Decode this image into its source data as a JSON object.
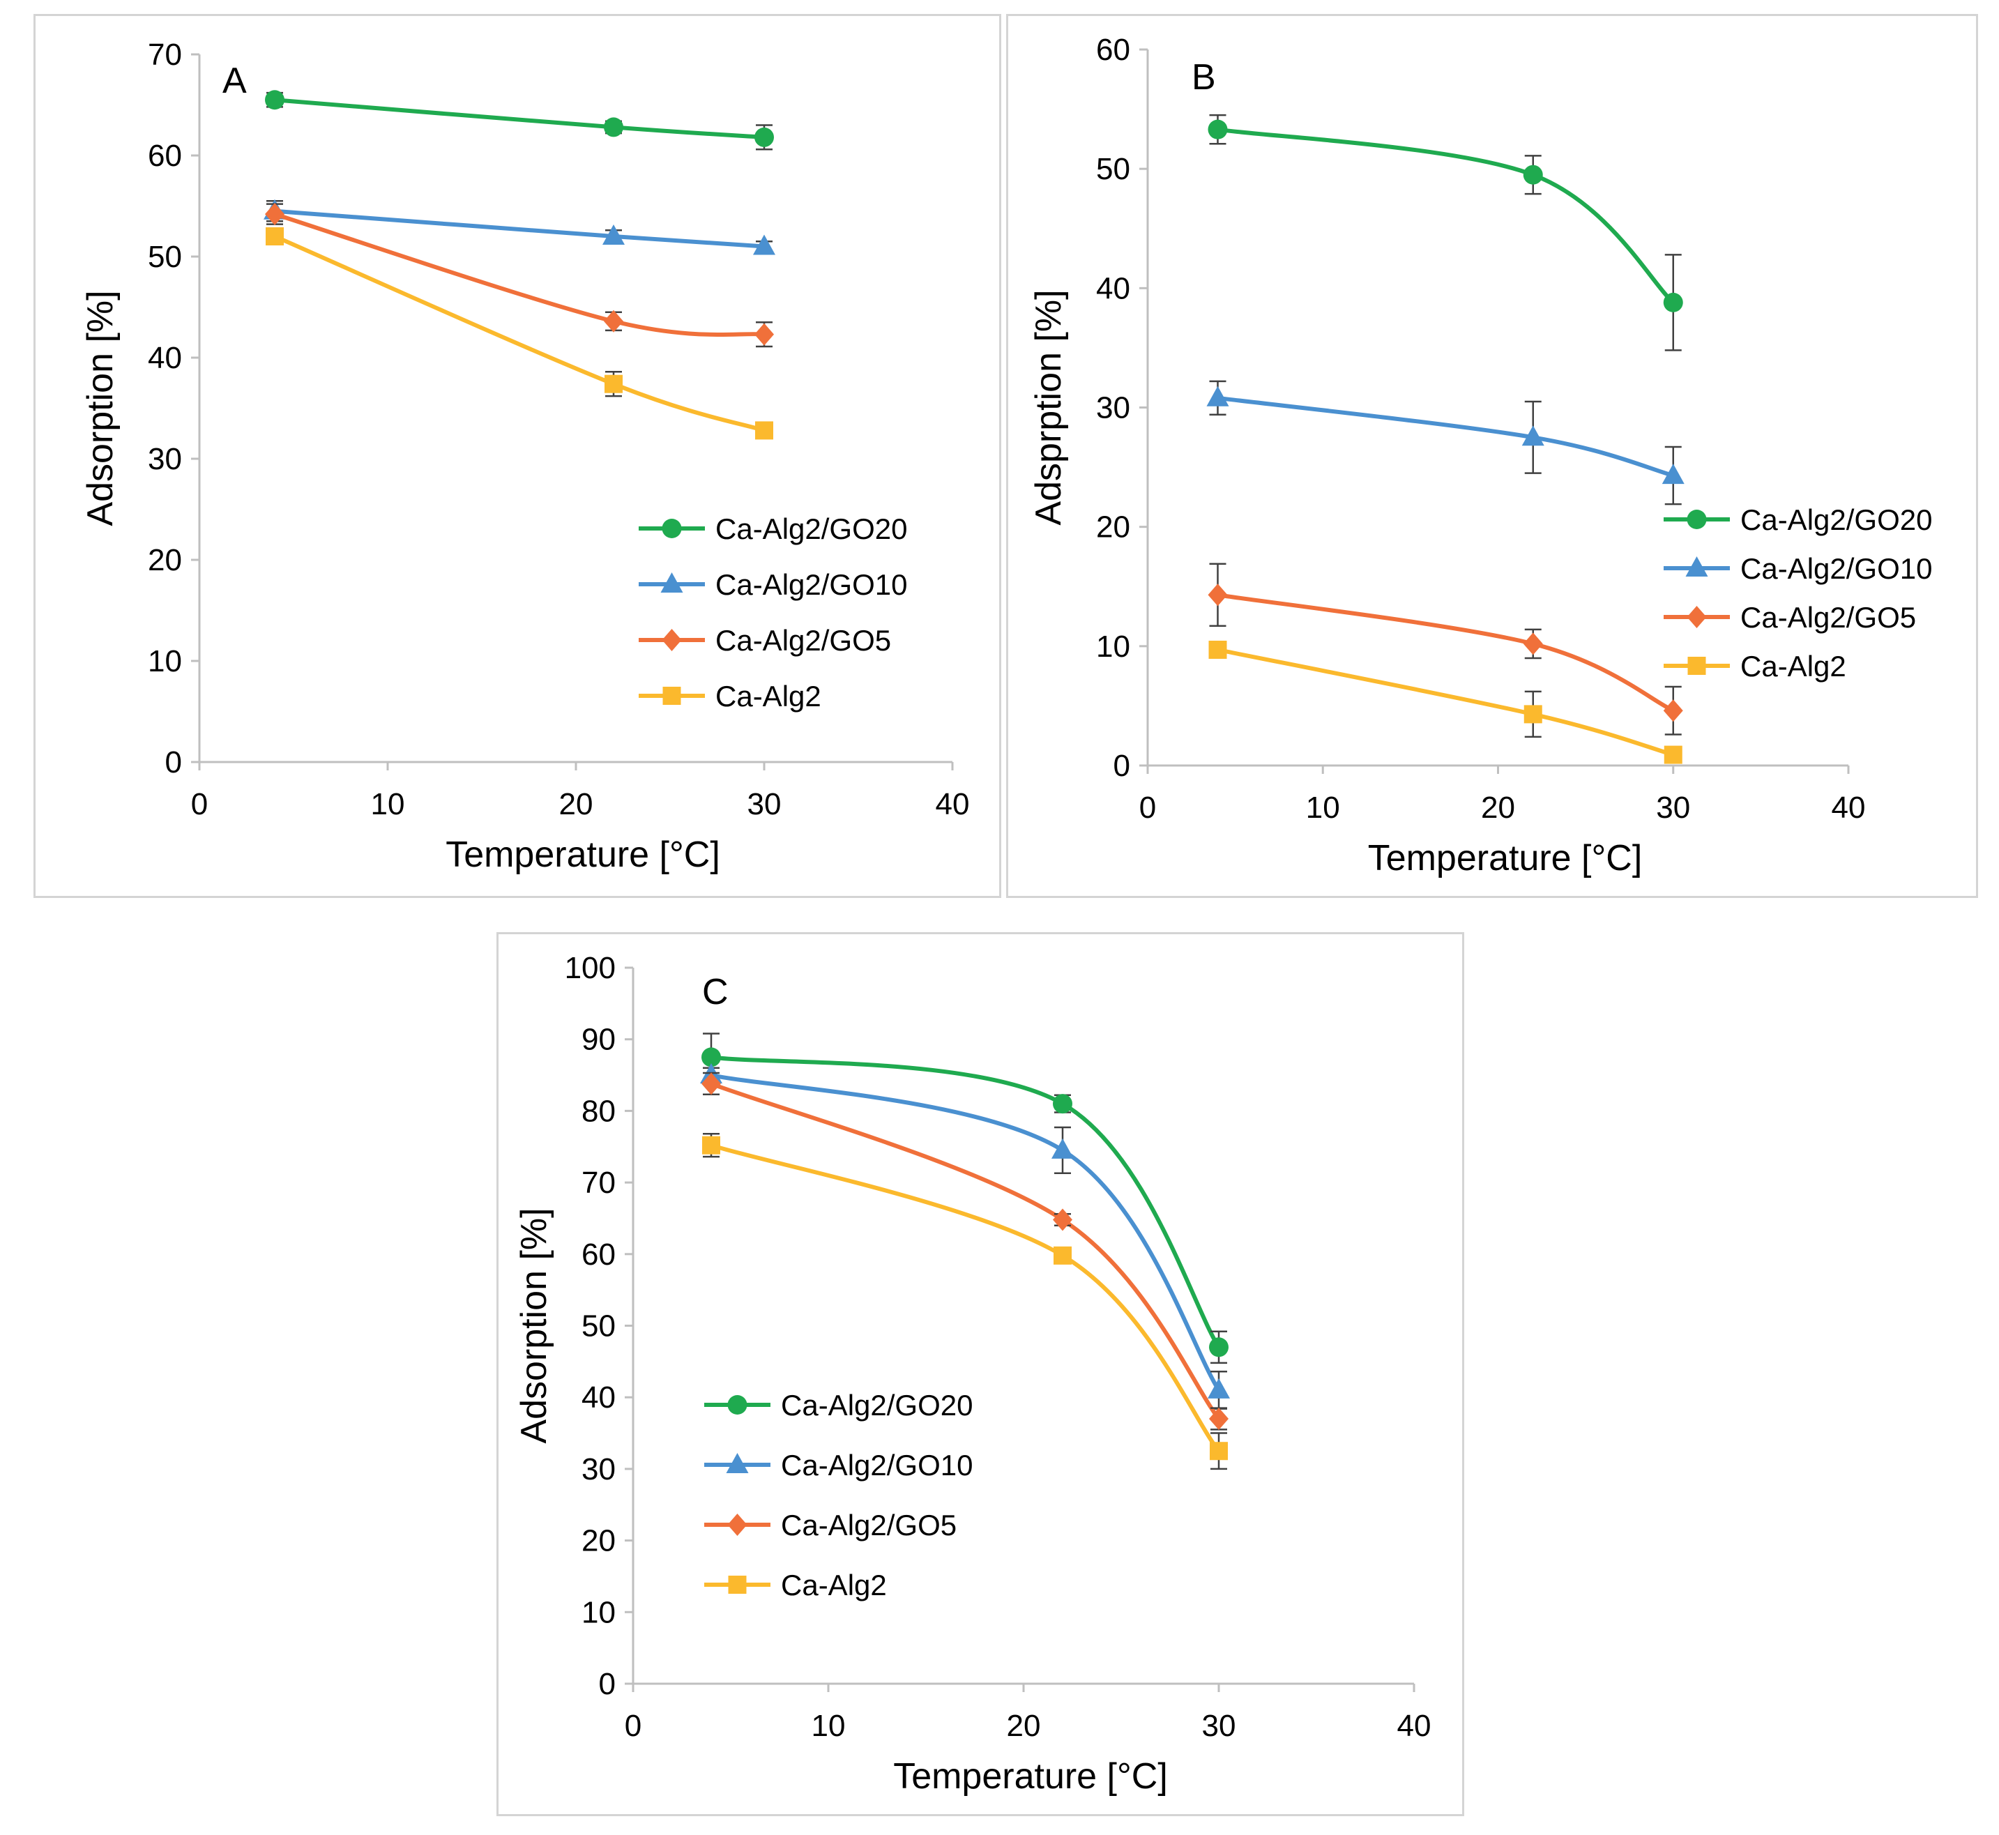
{
  "colors": {
    "Ca-Alg2/GO20": "#1faa4f",
    "Ca-Alg2/GO10": "#4a90d0",
    "Ca-Alg2/GO5": "#f0703a",
    "Ca-Alg2": "#fbb92d",
    "axis": "#bfbfbf",
    "errorbar": "#404040"
  },
  "chart_data": [
    {
      "type": "line",
      "panel": "A",
      "xlabel": "Temperature [°C]",
      "ylabel": "Adsorption [%]",
      "xlim": [
        0,
        40
      ],
      "ylim": [
        0,
        70
      ],
      "xticks": [
        0,
        10,
        20,
        30,
        40
      ],
      "yticks": [
        0,
        10,
        20,
        30,
        40,
        50,
        60,
        70
      ],
      "grid": false,
      "legend_position": "bottom-right",
      "x": [
        4,
        22,
        30
      ],
      "series": [
        {
          "name": "Ca-Alg2/GO20",
          "marker": "circle",
          "values": [
            65.5,
            62.8,
            61.8
          ],
          "errors": [
            0.7,
            0.6,
            1.2
          ]
        },
        {
          "name": "Ca-Alg2/GO10",
          "marker": "triangle",
          "values": [
            54.5,
            52.0,
            51.0
          ],
          "errors": [
            1.0,
            0.6,
            0.5
          ]
        },
        {
          "name": "Ca-Alg2/GO5",
          "marker": "diamond",
          "values": [
            54.2,
            43.6,
            42.3
          ],
          "errors": [
            1.0,
            0.9,
            1.2
          ]
        },
        {
          "name": "Ca-Alg2",
          "marker": "square",
          "values": [
            52.0,
            37.4,
            32.8
          ],
          "errors": [
            0.5,
            1.2,
            0.4
          ]
        }
      ]
    },
    {
      "type": "line",
      "panel": "B",
      "xlabel": "Temperature [°C]",
      "ylabel": "Adsprption [%]",
      "xlim": [
        0,
        40
      ],
      "ylim": [
        0,
        60
      ],
      "xticks": [
        0,
        10,
        20,
        30,
        40
      ],
      "yticks": [
        0,
        10,
        20,
        30,
        40,
        50,
        60
      ],
      "grid": false,
      "legend_position": "right",
      "x": [
        4,
        22,
        30
      ],
      "series": [
        {
          "name": "Ca-Alg2/GO20",
          "marker": "circle",
          "values": [
            53.3,
            49.5,
            38.8
          ],
          "errors": [
            1.2,
            1.6,
            4.0
          ]
        },
        {
          "name": "Ca-Alg2/GO10",
          "marker": "triangle",
          "values": [
            30.8,
            27.5,
            24.3
          ],
          "errors": [
            1.4,
            3.0,
            2.4
          ]
        },
        {
          "name": "Ca-Alg2/GO5",
          "marker": "diamond",
          "values": [
            14.3,
            10.2,
            4.6
          ],
          "errors": [
            2.6,
            1.2,
            2.0
          ]
        },
        {
          "name": "Ca-Alg2",
          "marker": "square",
          "values": [
            9.7,
            4.3,
            0.9
          ],
          "errors": [
            0.6,
            1.9,
            0.5
          ]
        }
      ]
    },
    {
      "type": "line",
      "panel": "C",
      "xlabel": "Temperature [°C]",
      "ylabel": "Adsorption [%]",
      "xlim": [
        0,
        40
      ],
      "ylim": [
        0,
        100
      ],
      "xticks": [
        0,
        10,
        20,
        30,
        40
      ],
      "yticks": [
        0,
        10,
        20,
        30,
        40,
        50,
        60,
        70,
        80,
        90,
        100
      ],
      "grid": false,
      "legend_position": "bottom-left",
      "x": [
        4,
        22,
        30
      ],
      "series": [
        {
          "name": "Ca-Alg2/GO20",
          "marker": "circle",
          "values": [
            87.5,
            81.0,
            47.0
          ],
          "errors": [
            3.3,
            1.2,
            2.2
          ]
        },
        {
          "name": "Ca-Alg2/GO10",
          "marker": "triangle",
          "values": [
            85.0,
            74.5,
            41.0
          ],
          "errors": [
            1.0,
            3.2,
            2.6
          ]
        },
        {
          "name": "Ca-Alg2/GO5",
          "marker": "diamond",
          "values": [
            83.8,
            64.8,
            37.0
          ],
          "errors": [
            1.5,
            0.8,
            1.5
          ]
        },
        {
          "name": "Ca-Alg2",
          "marker": "square",
          "values": [
            75.2,
            59.8,
            32.5
          ],
          "errors": [
            1.6,
            0.5,
            2.5
          ]
        }
      ]
    }
  ]
}
